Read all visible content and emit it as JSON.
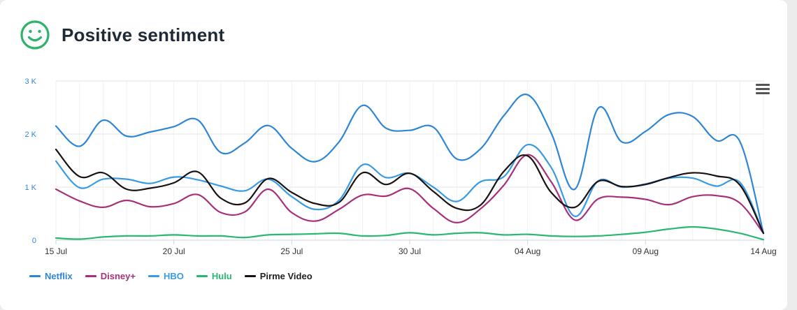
{
  "header": {
    "title": "Positive sentiment",
    "icon": "smiley-icon",
    "icon_color": "#2fb36b"
  },
  "chart_data": {
    "type": "line",
    "title": "Positive sentiment",
    "xlabel": "",
    "ylabel": "",
    "ylim": [
      0,
      3000
    ],
    "y_ticks": [
      "0",
      "1 K",
      "2 K",
      "3 K"
    ],
    "x_tick_labels": [
      "15 Jul",
      "20 Jul",
      "25 Jul",
      "30 Jul",
      "04 Aug",
      "09 Aug",
      "14 Aug"
    ],
    "x": [
      "15 Jul",
      "16 Jul",
      "17 Jul",
      "18 Jul",
      "19 Jul",
      "20 Jul",
      "21 Jul",
      "22 Jul",
      "23 Jul",
      "24 Jul",
      "25 Jul",
      "26 Jul",
      "27 Jul",
      "28 Jul",
      "29 Jul",
      "30 Jul",
      "31 Jul",
      "01 Aug",
      "02 Aug",
      "03 Aug",
      "04 Aug",
      "05 Aug",
      "06 Aug",
      "07 Aug",
      "08 Aug",
      "09 Aug",
      "10 Aug",
      "11 Aug",
      "12 Aug",
      "13 Aug",
      "14 Aug"
    ],
    "grid": true,
    "legend_position": "bottom-left",
    "series": [
      {
        "name": "Netflix",
        "color": "#2f86d6",
        "values": [
          2150,
          1770,
          2260,
          1960,
          2040,
          2140,
          2270,
          1650,
          1830,
          2160,
          1730,
          1480,
          1850,
          2540,
          2110,
          2070,
          2130,
          1530,
          1720,
          2350,
          2740,
          2020,
          960,
          2490,
          1850,
          2050,
          2370,
          2330,
          1880,
          1860,
          130
        ]
      },
      {
        "name": "Disney+",
        "color": "#a8307a",
        "values": [
          960,
          740,
          620,
          750,
          630,
          690,
          860,
          520,
          530,
          960,
          520,
          360,
          580,
          850,
          830,
          970,
          600,
          330,
          590,
          1040,
          1610,
          1100,
          380,
          780,
          810,
          770,
          670,
          820,
          840,
          700,
          130
        ]
      },
      {
        "name": "HBO",
        "color": "#3a9be5",
        "values": [
          1490,
          990,
          1150,
          1150,
          1070,
          1190,
          1140,
          1020,
          930,
          1150,
          820,
          580,
          750,
          1420,
          1180,
          1260,
          1000,
          730,
          1100,
          1200,
          1800,
          1370,
          450,
          1120,
          1000,
          1060,
          1170,
          1170,
          1020,
          1090,
          130
        ]
      },
      {
        "name": "Hulu",
        "color": "#29b870",
        "values": [
          40,
          20,
          60,
          80,
          80,
          100,
          80,
          80,
          50,
          100,
          110,
          120,
          130,
          80,
          90,
          140,
          100,
          130,
          140,
          100,
          110,
          80,
          70,
          80,
          110,
          150,
          210,
          250,
          210,
          130,
          10
        ]
      },
      {
        "name": "Pirme Video",
        "color": "#1a1212",
        "values": [
          1710,
          1200,
          1270,
          960,
          980,
          1080,
          1290,
          790,
          700,
          1160,
          900,
          690,
          710,
          1270,
          1050,
          1260,
          920,
          600,
          660,
          1300,
          1590,
          900,
          620,
          1110,
          1010,
          1050,
          1180,
          1270,
          1210,
          1040,
          130
        ]
      }
    ]
  }
}
